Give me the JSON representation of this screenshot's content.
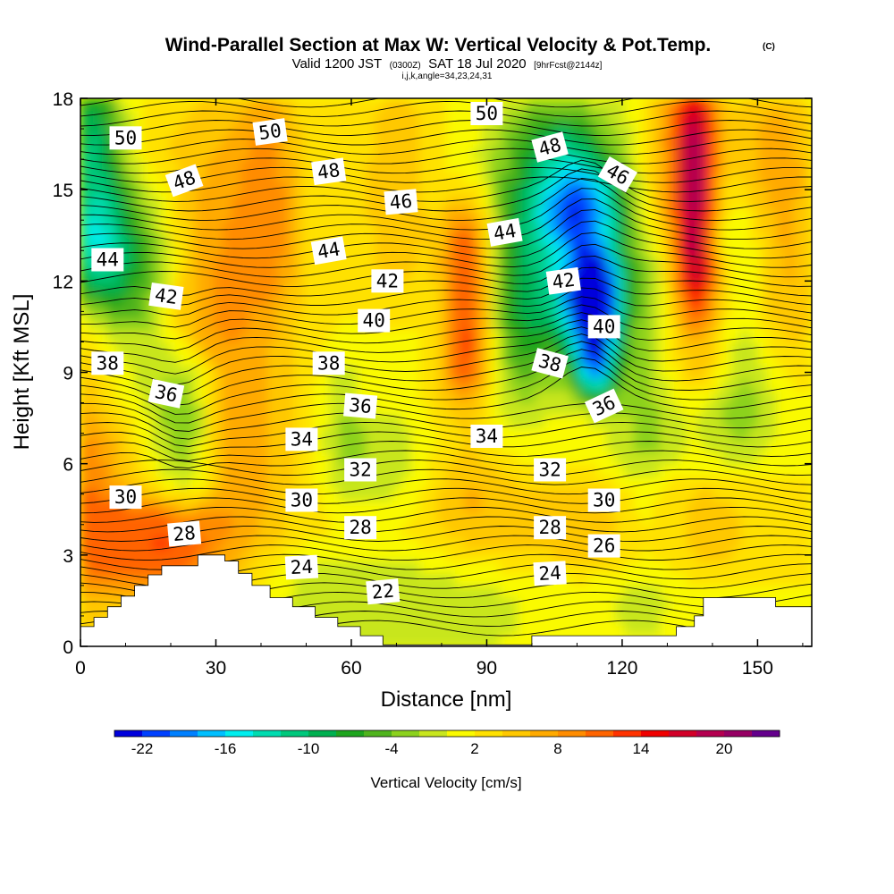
{
  "chart_data": {
    "type": "heatmap",
    "title": "Wind-Parallel Section at Max W: Vertical Velocity & Pot.Temp.",
    "title_mark": "(C)",
    "subtitle": {
      "valid_prefix": "Valid 1200 JST",
      "utc": "(0300Z)",
      "date": "SAT 18 Jul 2020",
      "forecast": "[9hrFcst@2144z]"
    },
    "indices": "i,j,k,angle=34,23,24,31",
    "xlabel": "Distance [nm]",
    "ylabel": "Height [Kft MSL]",
    "xlim": [
      0,
      162
    ],
    "ylim": [
      0,
      18
    ],
    "x_ticks": [
      0,
      30,
      60,
      90,
      120,
      150
    ],
    "y_ticks": [
      0,
      3,
      6,
      9,
      12,
      15,
      18
    ],
    "colorbar": {
      "label": "Vertical Velocity [cm/s]",
      "tick_labels": [
        "-22",
        "-16",
        "-10",
        "-4",
        "2",
        "8",
        "14",
        "20"
      ],
      "colors": [
        "#0000dc",
        "#0040ff",
        "#0080ff",
        "#00bfff",
        "#00eeee",
        "#00dcb0",
        "#00c87c",
        "#00b050",
        "#1ea51e",
        "#50b41e",
        "#8cd21e",
        "#c8e61e",
        "#fafa00",
        "#ffe100",
        "#ffc800",
        "#ffaa00",
        "#ff8c00",
        "#ff6400",
        "#ff3200",
        "#f00000",
        "#d20028",
        "#b40050",
        "#960064",
        "#64008c"
      ]
    },
    "terrain": [
      [
        0,
        0.65
      ],
      [
        3,
        0.65
      ],
      [
        3,
        0.95
      ],
      [
        6,
        0.95
      ],
      [
        6,
        1.3
      ],
      [
        9,
        1.3
      ],
      [
        9,
        1.65
      ],
      [
        12,
        1.65
      ],
      [
        12,
        2.0
      ],
      [
        15,
        2.0
      ],
      [
        15,
        2.35
      ],
      [
        18,
        2.35
      ],
      [
        18,
        2.65
      ],
      [
        26,
        2.65
      ],
      [
        26,
        3.0
      ],
      [
        32,
        3.0
      ],
      [
        32,
        2.8
      ],
      [
        35,
        2.8
      ],
      [
        35,
        2.4
      ],
      [
        38,
        2.4
      ],
      [
        38,
        2.0
      ],
      [
        42,
        2.0
      ],
      [
        42,
        1.6
      ],
      [
        47,
        1.6
      ],
      [
        47,
        1.3
      ],
      [
        52,
        1.3
      ],
      [
        52,
        0.95
      ],
      [
        57,
        0.95
      ],
      [
        57,
        0.65
      ],
      [
        62,
        0.65
      ],
      [
        62,
        0.35
      ],
      [
        67,
        0.35
      ],
      [
        67,
        0.05
      ],
      [
        100,
        0.05
      ],
      [
        100,
        0.35
      ],
      [
        132,
        0.35
      ],
      [
        132,
        0.65
      ],
      [
        136,
        0.65
      ],
      [
        136,
        1.0
      ],
      [
        138,
        1.0
      ],
      [
        138,
        1.6
      ],
      [
        154,
        1.6
      ],
      [
        154,
        1.3
      ],
      [
        162,
        1.3
      ]
    ],
    "theta_contours": [
      {
        "value": 22,
        "label": "22",
        "label_pos": [
          67,
          1.8
        ],
        "label_angle": -5
      },
      {
        "value": 24,
        "label": "24",
        "label_pos": [
          49,
          2.6
        ],
        "label_angle": -3
      },
      {
        "value": 24,
        "label": "24",
        "label_pos": [
          104,
          2.4
        ],
        "label_angle": -3
      },
      {
        "value": 26,
        "label": "26",
        "label_pos": [
          116,
          3.3
        ],
        "label_angle": 0
      },
      {
        "value": 28,
        "label": "28",
        "label_pos": [
          23,
          3.7
        ],
        "label_angle": -5
      },
      {
        "value": 28,
        "label": "28",
        "label_pos": [
          62,
          3.9
        ],
        "label_angle": 0
      },
      {
        "value": 28,
        "label": "28",
        "label_pos": [
          104,
          3.9
        ],
        "label_angle": 0
      },
      {
        "value": 30,
        "label": "30",
        "label_pos": [
          10,
          4.9
        ],
        "label_angle": 0
      },
      {
        "value": 30,
        "label": "30",
        "label_pos": [
          49,
          4.8
        ],
        "label_angle": 0
      },
      {
        "value": 30,
        "label": "30",
        "label_pos": [
          116,
          4.8
        ],
        "label_angle": 0
      },
      {
        "value": 32,
        "label": "32",
        "label_pos": [
          62,
          5.8
        ],
        "label_angle": 0
      },
      {
        "value": 32,
        "label": "32",
        "label_pos": [
          104,
          5.8
        ],
        "label_angle": 0
      },
      {
        "value": 34,
        "label": "34",
        "label_pos": [
          49,
          6.8
        ],
        "label_angle": 0
      },
      {
        "value": 34,
        "label": "34",
        "label_pos": [
          90,
          6.9
        ],
        "label_angle": 0
      },
      {
        "value": 36,
        "label": "36",
        "label_pos": [
          19,
          8.3
        ],
        "label_angle": 12
      },
      {
        "value": 36,
        "label": "36",
        "label_pos": [
          62,
          7.9
        ],
        "label_angle": 5
      },
      {
        "value": 36,
        "label": "36",
        "label_pos": [
          116,
          7.9
        ],
        "label_angle": -25
      },
      {
        "value": 38,
        "label": "38",
        "label_pos": [
          6,
          9.3
        ],
        "label_angle": 0
      },
      {
        "value": 38,
        "label": "38",
        "label_pos": [
          55,
          9.3
        ],
        "label_angle": 0
      },
      {
        "value": 38,
        "label": "38",
        "label_pos": [
          104,
          9.3
        ],
        "label_angle": 15
      },
      {
        "value": 40,
        "label": "40",
        "label_pos": [
          65,
          10.7
        ],
        "label_angle": 0
      },
      {
        "value": 40,
        "label": "40",
        "label_pos": [
          116,
          10.5
        ],
        "label_angle": 0
      },
      {
        "value": 42,
        "label": "42",
        "label_pos": [
          19,
          11.5
        ],
        "label_angle": 8
      },
      {
        "value": 42,
        "label": "42",
        "label_pos": [
          68,
          12.0
        ],
        "label_angle": 0
      },
      {
        "value": 42,
        "label": "42",
        "label_pos": [
          107,
          12.0
        ],
        "label_angle": -8
      },
      {
        "value": 44,
        "label": "44",
        "label_pos": [
          6,
          12.7
        ],
        "label_angle": 0
      },
      {
        "value": 44,
        "label": "44",
        "label_pos": [
          55,
          13.0
        ],
        "label_angle": -10
      },
      {
        "value": 44,
        "label": "44",
        "label_pos": [
          94,
          13.6
        ],
        "label_angle": -10
      },
      {
        "value": 46,
        "label": "46",
        "label_pos": [
          71,
          14.6
        ],
        "label_angle": -5
      },
      {
        "value": 46,
        "label": "46",
        "label_pos": [
          119,
          15.5
        ],
        "label_angle": 30
      },
      {
        "value": 48,
        "label": "48",
        "label_pos": [
          23,
          15.3
        ],
        "label_angle": -20
      },
      {
        "value": 48,
        "label": "48",
        "label_pos": [
          55,
          15.6
        ],
        "label_angle": -8
      },
      {
        "value": 48,
        "label": "48",
        "label_pos": [
          104,
          16.4
        ],
        "label_angle": -15
      },
      {
        "value": 50,
        "label": "50",
        "label_pos": [
          10,
          16.7
        ],
        "label_angle": 0
      },
      {
        "value": 50,
        "label": "50",
        "label_pos": [
          42,
          16.9
        ],
        "label_angle": -8
      },
      {
        "value": 50,
        "label": "50",
        "label_pos": [
          90,
          17.5
        ],
        "label_angle": 0
      }
    ]
  }
}
